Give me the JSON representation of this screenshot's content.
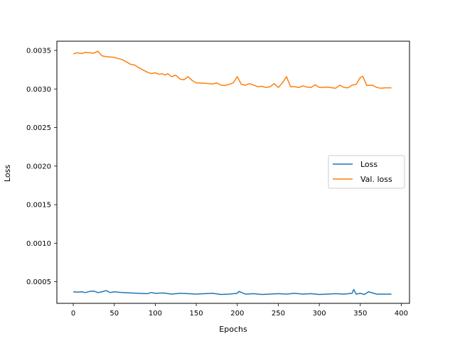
{
  "chart_data": {
    "type": "line",
    "title": "",
    "xlabel": "Epochs",
    "ylabel": "Loss",
    "xlim": [
      -20,
      410
    ],
    "ylim": [
      0.00022,
      0.00362
    ],
    "xticks": [
      0,
      50,
      100,
      150,
      200,
      250,
      300,
      350,
      400
    ],
    "xtick_labels": [
      "0",
      "50",
      "100",
      "150",
      "200",
      "250",
      "300",
      "350",
      "400"
    ],
    "yticks": [
      0.0005,
      0.001,
      0.0015,
      0.002,
      0.0025,
      0.003,
      0.0035
    ],
    "ytick_labels": [
      "0.0005",
      "0.0010",
      "0.0015",
      "0.0020",
      "0.0025",
      "0.0030",
      "0.0035"
    ],
    "grid": false,
    "legend_position": "center-right",
    "series": [
      {
        "name": "Loss",
        "color": "#1f77b4",
        "x": [
          0,
          5,
          10,
          15,
          20,
          25,
          30,
          35,
          40,
          45,
          50,
          60,
          70,
          80,
          90,
          95,
          100,
          110,
          120,
          130,
          140,
          150,
          160,
          170,
          180,
          190,
          200,
          202,
          210,
          220,
          230,
          240,
          250,
          260,
          270,
          280,
          290,
          300,
          310,
          320,
          330,
          340,
          342,
          345,
          350,
          355,
          360,
          370,
          380,
          388
        ],
        "y": [
          0.00037,
          0.000365,
          0.00037,
          0.00036,
          0.000375,
          0.00038,
          0.00036,
          0.00037,
          0.000385,
          0.00036,
          0.00037,
          0.00036,
          0.000355,
          0.00035,
          0.000345,
          0.00036,
          0.00035,
          0.000355,
          0.00034,
          0.00035,
          0.000345,
          0.00034,
          0.000345,
          0.00035,
          0.000335,
          0.00034,
          0.00035,
          0.000375,
          0.00034,
          0.000345,
          0.000335,
          0.00034,
          0.000345,
          0.00034,
          0.00035,
          0.00034,
          0.000345,
          0.000335,
          0.00034,
          0.000345,
          0.00034,
          0.00035,
          0.0004,
          0.00034,
          0.00035,
          0.000335,
          0.00037,
          0.00034,
          0.00034,
          0.00034
        ]
      },
      {
        "name": "Val. loss",
        "color": "#ff7f0e",
        "x": [
          0,
          5,
          10,
          15,
          20,
          25,
          30,
          35,
          40,
          50,
          60,
          70,
          75,
          80,
          90,
          95,
          100,
          105,
          108,
          112,
          115,
          120,
          125,
          130,
          135,
          140,
          145,
          150,
          160,
          170,
          175,
          180,
          185,
          190,
          195,
          200,
          205,
          210,
          215,
          220,
          225,
          230,
          235,
          240,
          245,
          250,
          255,
          260,
          265,
          270,
          275,
          280,
          285,
          290,
          295,
          300,
          310,
          320,
          325,
          330,
          335,
          340,
          345,
          350,
          353,
          358,
          365,
          370,
          375,
          380,
          388
        ],
        "y": [
          0.003455,
          0.00347,
          0.00346,
          0.003475,
          0.00347,
          0.003465,
          0.00349,
          0.00343,
          0.00342,
          0.00341,
          0.00338,
          0.00332,
          0.00331,
          0.003275,
          0.00322,
          0.0032,
          0.00321,
          0.00319,
          0.0032,
          0.00318,
          0.0032,
          0.00316,
          0.00318,
          0.00313,
          0.00312,
          0.00316,
          0.00311,
          0.00308,
          0.003075,
          0.003065,
          0.00308,
          0.00305,
          0.003045,
          0.00306,
          0.00308,
          0.00316,
          0.00306,
          0.00305,
          0.00307,
          0.00305,
          0.00303,
          0.003035,
          0.00302,
          0.00303,
          0.00307,
          0.00302,
          0.00308,
          0.00316,
          0.00303,
          0.00303,
          0.00302,
          0.00304,
          0.003025,
          0.00302,
          0.003055,
          0.00302,
          0.003025,
          0.00301,
          0.00305,
          0.00302,
          0.003015,
          0.00305,
          0.00306,
          0.00315,
          0.003165,
          0.003045,
          0.00305,
          0.00302,
          0.00301,
          0.003015,
          0.003015
        ]
      }
    ]
  }
}
